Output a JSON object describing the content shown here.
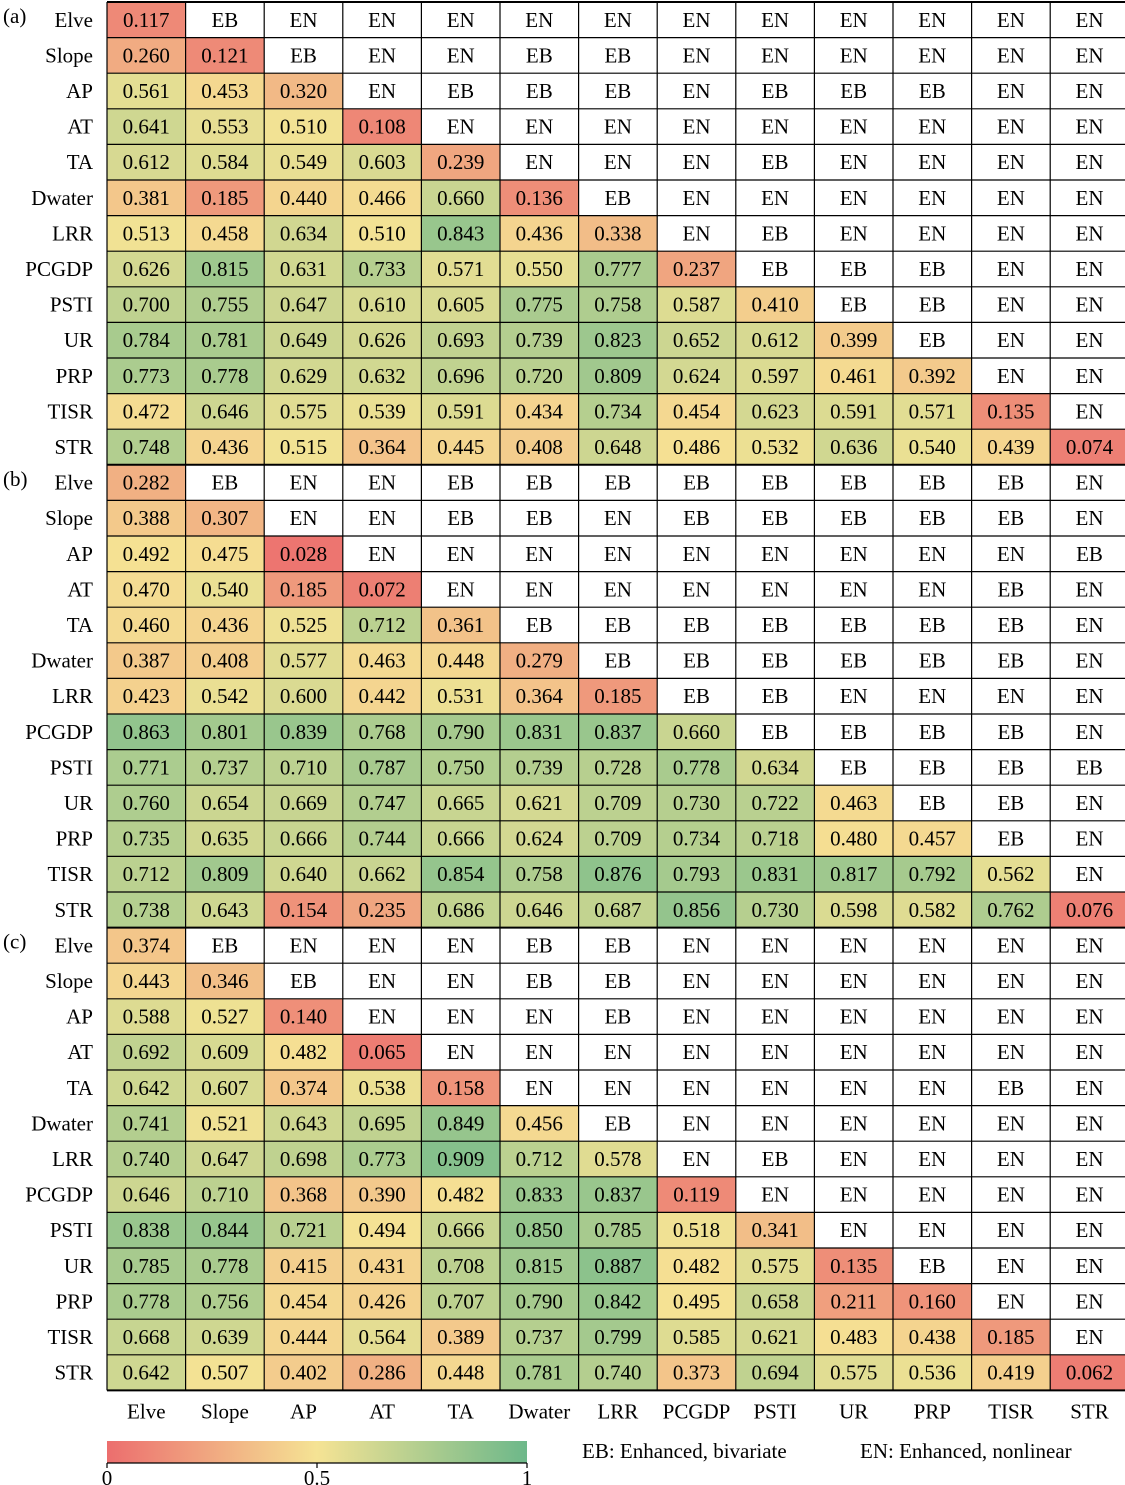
{
  "chart_data": {
    "type": "heatmap",
    "variables": [
      "Elve",
      "Slope",
      "AP",
      "AT",
      "TA",
      "Dwater",
      "LRR",
      "PCGDP",
      "PSTI",
      "UR",
      "PRP",
      "TISR",
      "STR"
    ],
    "panels": [
      {
        "label": "(a)",
        "values": [
          [
            0.117
          ],
          [
            0.26,
            0.121
          ],
          [
            0.561,
            0.453,
            0.32
          ],
          [
            0.641,
            0.553,
            0.51,
            0.108
          ],
          [
            0.612,
            0.584,
            0.549,
            0.603,
            0.239
          ],
          [
            0.381,
            0.185,
            0.44,
            0.466,
            0.66,
            0.136
          ],
          [
            0.513,
            0.458,
            0.634,
            0.51,
            0.843,
            0.436,
            0.338
          ],
          [
            0.626,
            0.815,
            0.631,
            0.733,
            0.571,
            0.55,
            0.777,
            0.237
          ],
          [
            0.7,
            0.755,
            0.647,
            0.61,
            0.605,
            0.775,
            0.758,
            0.587,
            0.41
          ],
          [
            0.784,
            0.781,
            0.649,
            0.626,
            0.693,
            0.739,
            0.823,
            0.652,
            0.612,
            0.399
          ],
          [
            0.773,
            0.778,
            0.629,
            0.632,
            0.696,
            0.72,
            0.809,
            0.624,
            0.597,
            0.461,
            0.392
          ],
          [
            0.472,
            0.646,
            0.575,
            0.539,
            0.591,
            0.434,
            0.734,
            0.454,
            0.623,
            0.591,
            0.571,
            0.135
          ],
          [
            0.748,
            0.436,
            0.515,
            0.364,
            0.445,
            0.408,
            0.648,
            0.486,
            0.532,
            0.636,
            0.54,
            0.439,
            0.074
          ]
        ],
        "types": [
          [
            "EB",
            "EN",
            "EN",
            "EN",
            "EN",
            "EN",
            "EN",
            "EN",
            "EN",
            "EN",
            "EN",
            "EN"
          ],
          [
            "EB",
            "EN",
            "EN",
            "EB",
            "EB",
            "EN",
            "EN",
            "EN",
            "EN",
            "EN",
            "EN"
          ],
          [
            "EN",
            "EB",
            "EB",
            "EB",
            "EN",
            "EB",
            "EB",
            "EB",
            "EN",
            "EN"
          ],
          [
            "EN",
            "EN",
            "EN",
            "EN",
            "EN",
            "EN",
            "EN",
            "EN",
            "EN"
          ],
          [
            "EN",
            "EN",
            "EN",
            "EB",
            "EN",
            "EN",
            "EN",
            "EN"
          ],
          [
            "EB",
            "EN",
            "EN",
            "EN",
            "EN",
            "EN",
            "EN"
          ],
          [
            "EN",
            "EB",
            "EN",
            "EN",
            "EN",
            "EN"
          ],
          [
            "EB",
            "EB",
            "EB",
            "EN",
            "EN"
          ],
          [
            "EB",
            "EB",
            "EN",
            "EN"
          ],
          [
            "EB",
            "EN",
            "EN"
          ],
          [
            "EN",
            "EN"
          ],
          [
            "EN"
          ],
          []
        ]
      },
      {
        "label": "(b)",
        "values": [
          [
            0.282
          ],
          [
            0.388,
            0.307
          ],
          [
            0.492,
            0.475,
            0.028
          ],
          [
            0.47,
            0.54,
            0.185,
            0.072
          ],
          [
            0.46,
            0.436,
            0.525,
            0.712,
            0.361
          ],
          [
            0.387,
            0.408,
            0.577,
            0.463,
            0.448,
            0.279
          ],
          [
            0.423,
            0.542,
            0.6,
            0.442,
            0.531,
            0.364,
            0.185
          ],
          [
            0.863,
            0.801,
            0.839,
            0.768,
            0.79,
            0.831,
            0.837,
            0.66
          ],
          [
            0.771,
            0.737,
            0.71,
            0.787,
            0.75,
            0.739,
            0.728,
            0.778,
            0.634
          ],
          [
            0.76,
            0.654,
            0.669,
            0.747,
            0.665,
            0.621,
            0.709,
            0.73,
            0.722,
            0.463
          ],
          [
            0.735,
            0.635,
            0.666,
            0.744,
            0.666,
            0.624,
            0.709,
            0.734,
            0.718,
            0.48,
            0.457
          ],
          [
            0.712,
            0.809,
            0.64,
            0.662,
            0.854,
            0.758,
            0.876,
            0.793,
            0.831,
            0.817,
            0.792,
            0.562
          ],
          [
            0.738,
            0.643,
            0.154,
            0.235,
            0.686,
            0.646,
            0.687,
            0.856,
            0.73,
            0.598,
            0.582,
            0.762,
            0.076
          ]
        ],
        "types": [
          [
            "EB",
            "EN",
            "EN",
            "EB",
            "EB",
            "EB",
            "EB",
            "EB",
            "EB",
            "EB",
            "EB",
            "EN"
          ],
          [
            "EN",
            "EN",
            "EB",
            "EB",
            "EN",
            "EB",
            "EB",
            "EB",
            "EB",
            "EB",
            "EN"
          ],
          [
            "EN",
            "EN",
            "EN",
            "EN",
            "EN",
            "EN",
            "EN",
            "EN",
            "EN",
            "EB"
          ],
          [
            "EN",
            "EN",
            "EN",
            "EN",
            "EN",
            "EN",
            "EN",
            "EB",
            "EN"
          ],
          [
            "EB",
            "EB",
            "EB",
            "EB",
            "EB",
            "EB",
            "EB",
            "EN"
          ],
          [
            "EB",
            "EB",
            "EB",
            "EB",
            "EB",
            "EB",
            "EN"
          ],
          [
            "EB",
            "EB",
            "EN",
            "EN",
            "EN",
            "EN"
          ],
          [
            "EB",
            "EB",
            "EB",
            "EB",
            "EN"
          ],
          [
            "EB",
            "EB",
            "EB",
            "EB"
          ],
          [
            "EB",
            "EB",
            "EN"
          ],
          [
            "EB",
            "EN"
          ],
          [
            "EN"
          ],
          []
        ]
      },
      {
        "label": "(c)",
        "values": [
          [
            0.374
          ],
          [
            0.443,
            0.346
          ],
          [
            0.588,
            0.527,
            0.14
          ],
          [
            0.692,
            0.609,
            0.482,
            0.065
          ],
          [
            0.642,
            0.607,
            0.374,
            0.538,
            0.158
          ],
          [
            0.741,
            0.521,
            0.643,
            0.695,
            0.849,
            0.456
          ],
          [
            0.74,
            0.647,
            0.698,
            0.773,
            0.909,
            0.712,
            0.578
          ],
          [
            0.646,
            0.71,
            0.368,
            0.39,
            0.482,
            0.833,
            0.837,
            0.119
          ],
          [
            0.838,
            0.844,
            0.721,
            0.494,
            0.666,
            0.85,
            0.785,
            0.518,
            0.341
          ],
          [
            0.785,
            0.778,
            0.415,
            0.431,
            0.708,
            0.815,
            0.887,
            0.482,
            0.575,
            0.135
          ],
          [
            0.778,
            0.756,
            0.454,
            0.426,
            0.707,
            0.79,
            0.842,
            0.495,
            0.658,
            0.211,
            0.16
          ],
          [
            0.668,
            0.639,
            0.444,
            0.564,
            0.389,
            0.737,
            0.799,
            0.585,
            0.621,
            0.483,
            0.438,
            0.185
          ],
          [
            0.642,
            0.507,
            0.402,
            0.286,
            0.448,
            0.781,
            0.74,
            0.373,
            0.694,
            0.575,
            0.536,
            0.419,
            0.062
          ]
        ],
        "types": [
          [
            "EB",
            "EN",
            "EN",
            "EN",
            "EB",
            "EB",
            "EN",
            "EN",
            "EN",
            "EN",
            "EN",
            "EN"
          ],
          [
            "EB",
            "EN",
            "EN",
            "EB",
            "EB",
            "EN",
            "EN",
            "EN",
            "EN",
            "EN",
            "EN"
          ],
          [
            "EN",
            "EN",
            "EN",
            "EB",
            "EN",
            "EN",
            "EN",
            "EN",
            "EN",
            "EN"
          ],
          [
            "EN",
            "EN",
            "EN",
            "EN",
            "EN",
            "EN",
            "EN",
            "EN",
            "EN"
          ],
          [
            "EN",
            "EN",
            "EN",
            "EN",
            "EN",
            "EN",
            "EB",
            "EN"
          ],
          [
            "EB",
            "EN",
            "EN",
            "EN",
            "EN",
            "EN",
            "EN"
          ],
          [
            "EN",
            "EB",
            "EN",
            "EN",
            "EN",
            "EN"
          ],
          [
            "EN",
            "EN",
            "EN",
            "EN",
            "EN"
          ],
          [
            "EN",
            "EN",
            "EN",
            "EN"
          ],
          [
            "EB",
            "EN",
            "EN"
          ],
          [
            "EN",
            "EN"
          ],
          [
            "EN"
          ],
          []
        ]
      }
    ],
    "colorbar": {
      "min": 0,
      "max": 1,
      "ticks": [
        "0",
        "0.5",
        "1"
      ]
    },
    "colors": {
      "low": "#ec6e6e",
      "mid": "#f5e394",
      "high": "#6db88a"
    },
    "legend": [
      "EB: Enhanced, bivariate",
      "EN: Enhanced, nonlinear"
    ]
  }
}
